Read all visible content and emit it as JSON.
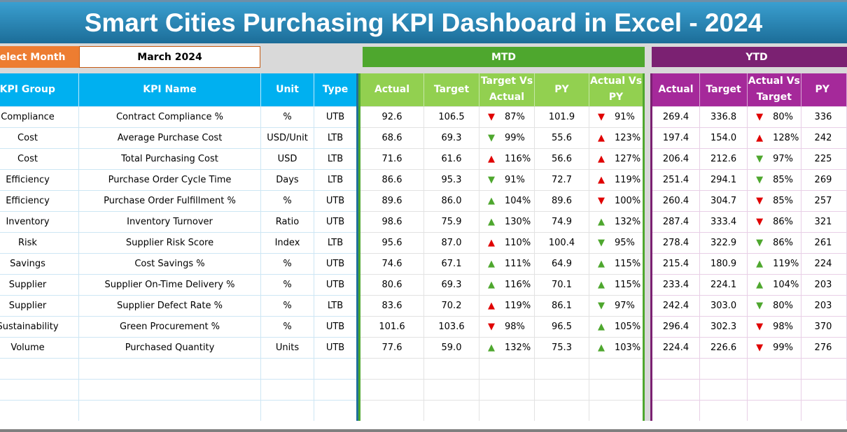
{
  "title": "Smart Cities Purchasing KPI Dashboard in Excel - 2024",
  "select_month": {
    "label": "Select Month",
    "value": "March 2024"
  },
  "mtd_label": "MTD",
  "ytd_label": "YTD",
  "colors": {
    "title": "#1c6d98",
    "select": "#ed7d31",
    "mtd": "#4ea72e",
    "ytd": "#7b2172",
    "up_good": "#4ea72e",
    "bad": "#e00000"
  },
  "left_headers": [
    "KPI Group",
    "KPI Name",
    "Unit",
    "Type"
  ],
  "mtd_headers": [
    "Actual",
    "Target",
    "Target Vs Actual",
    "PY",
    "Actual Vs PY"
  ],
  "ytd_headers": [
    "Actual",
    "Target",
    "Actual Vs Target",
    "PY"
  ],
  "rows": [
    {
      "group": "Compliance",
      "name": "Contract Compliance %",
      "unit": "%",
      "type": "UTB",
      "m_act": "92.6",
      "m_tgt": "106.5",
      "m_tva": {
        "v": "87%",
        "dir": "down",
        "color": "red"
      },
      "m_py": "101.9",
      "m_avp": {
        "v": "91%",
        "dir": "down",
        "color": "red"
      },
      "y_act": "269.4",
      "y_tgt": "336.8",
      "y_avt": {
        "v": "80%",
        "dir": "down",
        "color": "red"
      },
      "y_py": "336"
    },
    {
      "group": "Cost",
      "name": "Average Purchase Cost",
      "unit": "USD/Unit",
      "type": "LTB",
      "m_act": "68.6",
      "m_tgt": "69.3",
      "m_tva": {
        "v": "99%",
        "dir": "down",
        "color": "green"
      },
      "m_py": "55.6",
      "m_avp": {
        "v": "123%",
        "dir": "up",
        "color": "red"
      },
      "y_act": "197.4",
      "y_tgt": "154.0",
      "y_avt": {
        "v": "128%",
        "dir": "up",
        "color": "red"
      },
      "y_py": "242"
    },
    {
      "group": "Cost",
      "name": "Total Purchasing Cost",
      "unit": "USD",
      "type": "LTB",
      "m_act": "71.6",
      "m_tgt": "61.6",
      "m_tva": {
        "v": "116%",
        "dir": "up",
        "color": "red"
      },
      "m_py": "56.6",
      "m_avp": {
        "v": "127%",
        "dir": "up",
        "color": "red"
      },
      "y_act": "206.4",
      "y_tgt": "212.6",
      "y_avt": {
        "v": "97%",
        "dir": "down",
        "color": "green"
      },
      "y_py": "225"
    },
    {
      "group": "Efficiency",
      "name": "Purchase Order Cycle Time",
      "unit": "Days",
      "type": "LTB",
      "m_act": "86.6",
      "m_tgt": "95.3",
      "m_tva": {
        "v": "91%",
        "dir": "down",
        "color": "green"
      },
      "m_py": "72.7",
      "m_avp": {
        "v": "119%",
        "dir": "up",
        "color": "red"
      },
      "y_act": "251.4",
      "y_tgt": "294.1",
      "y_avt": {
        "v": "85%",
        "dir": "down",
        "color": "green"
      },
      "y_py": "269"
    },
    {
      "group": "Efficiency",
      "name": "Purchase Order Fulfillment %",
      "unit": "%",
      "type": "UTB",
      "m_act": "89.6",
      "m_tgt": "86.0",
      "m_tva": {
        "v": "104%",
        "dir": "up",
        "color": "green"
      },
      "m_py": "89.6",
      "m_avp": {
        "v": "100%",
        "dir": "down",
        "color": "red"
      },
      "y_act": "260.4",
      "y_tgt": "304.7",
      "y_avt": {
        "v": "85%",
        "dir": "down",
        "color": "red"
      },
      "y_py": "257"
    },
    {
      "group": "Inventory",
      "name": "Inventory Turnover",
      "unit": "Ratio",
      "type": "UTB",
      "m_act": "98.6",
      "m_tgt": "75.9",
      "m_tva": {
        "v": "130%",
        "dir": "up",
        "color": "green"
      },
      "m_py": "74.9",
      "m_avp": {
        "v": "132%",
        "dir": "up",
        "color": "green"
      },
      "y_act": "287.4",
      "y_tgt": "333.4",
      "y_avt": {
        "v": "86%",
        "dir": "down",
        "color": "red"
      },
      "y_py": "321"
    },
    {
      "group": "Risk",
      "name": "Supplier Risk Score",
      "unit": "Index",
      "type": "LTB",
      "m_act": "95.6",
      "m_tgt": "87.0",
      "m_tva": {
        "v": "110%",
        "dir": "up",
        "color": "red"
      },
      "m_py": "100.4",
      "m_avp": {
        "v": "95%",
        "dir": "down",
        "color": "green"
      },
      "y_act": "278.4",
      "y_tgt": "322.9",
      "y_avt": {
        "v": "86%",
        "dir": "down",
        "color": "green"
      },
      "y_py": "261"
    },
    {
      "group": "Savings",
      "name": "Cost Savings %",
      "unit": "%",
      "type": "UTB",
      "m_act": "74.6",
      "m_tgt": "67.1",
      "m_tva": {
        "v": "111%",
        "dir": "up",
        "color": "green"
      },
      "m_py": "64.9",
      "m_avp": {
        "v": "115%",
        "dir": "up",
        "color": "green"
      },
      "y_act": "215.4",
      "y_tgt": "180.9",
      "y_avt": {
        "v": "119%",
        "dir": "up",
        "color": "green"
      },
      "y_py": "224"
    },
    {
      "group": "Supplier",
      "name": "Supplier On-Time Delivery %",
      "unit": "%",
      "type": "UTB",
      "m_act": "80.6",
      "m_tgt": "69.3",
      "m_tva": {
        "v": "116%",
        "dir": "up",
        "color": "green"
      },
      "m_py": "70.1",
      "m_avp": {
        "v": "115%",
        "dir": "up",
        "color": "green"
      },
      "y_act": "233.4",
      "y_tgt": "224.1",
      "y_avt": {
        "v": "104%",
        "dir": "up",
        "color": "green"
      },
      "y_py": "203"
    },
    {
      "group": "Supplier",
      "name": "Supplier Defect Rate %",
      "unit": "%",
      "type": "LTB",
      "m_act": "83.6",
      "m_tgt": "70.2",
      "m_tva": {
        "v": "119%",
        "dir": "up",
        "color": "red"
      },
      "m_py": "86.1",
      "m_avp": {
        "v": "97%",
        "dir": "down",
        "color": "green"
      },
      "y_act": "242.4",
      "y_tgt": "303.0",
      "y_avt": {
        "v": "80%",
        "dir": "down",
        "color": "green"
      },
      "y_py": "203"
    },
    {
      "group": "Sustainability",
      "name": "Green Procurement %",
      "unit": "%",
      "type": "UTB",
      "m_act": "101.6",
      "m_tgt": "103.6",
      "m_tva": {
        "v": "98%",
        "dir": "down",
        "color": "red"
      },
      "m_py": "96.5",
      "m_avp": {
        "v": "105%",
        "dir": "up",
        "color": "green"
      },
      "y_act": "296.4",
      "y_tgt": "302.3",
      "y_avt": {
        "v": "98%",
        "dir": "down",
        "color": "red"
      },
      "y_py": "370"
    },
    {
      "group": "Volume",
      "name": "Purchased Quantity",
      "unit": "Units",
      "type": "UTB",
      "m_act": "77.6",
      "m_tgt": "59.0",
      "m_tva": {
        "v": "132%",
        "dir": "up",
        "color": "green"
      },
      "m_py": "75.3",
      "m_avp": {
        "v": "103%",
        "dir": "up",
        "color": "green"
      },
      "y_act": "224.4",
      "y_tgt": "226.6",
      "y_avt": {
        "v": "99%",
        "dir": "down",
        "color": "red"
      },
      "y_py": "276"
    }
  ]
}
